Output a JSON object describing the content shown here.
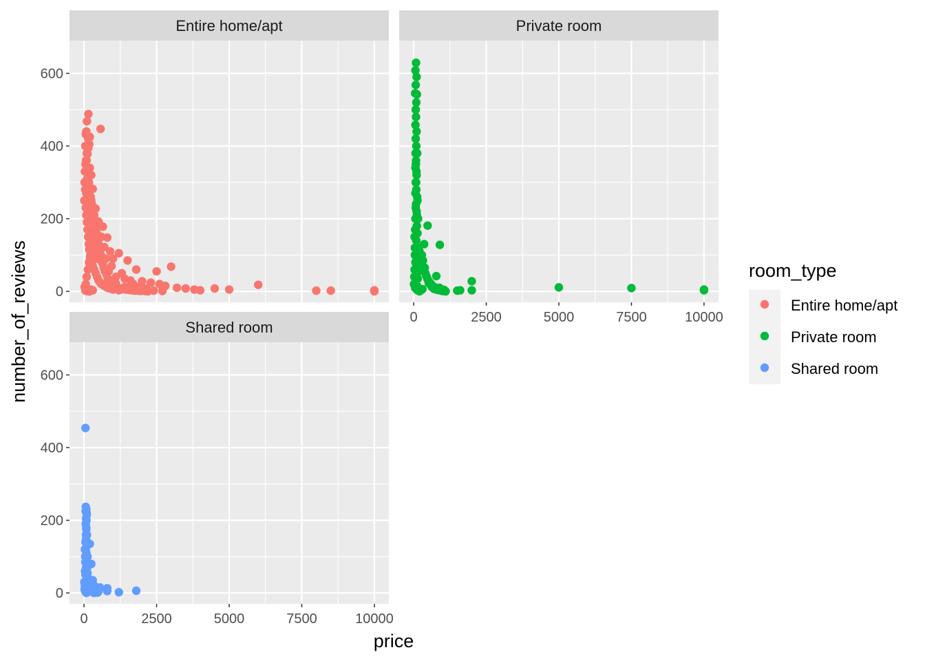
{
  "chart_data": {
    "type": "scatter",
    "xlabel": "price",
    "ylabel": "number_of_reviews",
    "xlim": [
      -500,
      10500
    ],
    "ylim": [
      -30,
      690
    ],
    "x_ticks": [
      0,
      2500,
      5000,
      7500,
      10000
    ],
    "x_tick_labels": [
      "0",
      "2500",
      "5000",
      "7500",
      "10000"
    ],
    "y_ticks": [
      0,
      200,
      400,
      600
    ],
    "y_tick_labels": [
      "0",
      "200",
      "400",
      "600"
    ],
    "grid": true,
    "legend": {
      "title": "room_type",
      "position": "right",
      "entries": [
        "Entire home/apt",
        "Private room",
        "Shared room"
      ]
    },
    "facets": [
      "Entire home/apt",
      "Private room",
      "Shared room"
    ],
    "colors": {
      "Entire home/apt": "#F8766D",
      "Private room": "#00BA38",
      "Shared room": "#619CFF",
      "panel_bg": "#EBEBEB",
      "strip_bg": "#D9D9D9",
      "grid": "#FFFFFF"
    },
    "series": [
      {
        "name": "Entire home/apt",
        "points": [
          [
            150,
            488
          ],
          [
            100,
            468
          ],
          [
            80,
            440
          ],
          [
            60,
            432
          ],
          [
            570,
            447
          ],
          [
            200,
            425
          ],
          [
            180,
            405
          ],
          [
            150,
            395
          ],
          [
            120,
            378
          ],
          [
            90,
            360
          ],
          [
            200,
            340
          ],
          [
            250,
            320
          ],
          [
            100,
            300
          ],
          [
            300,
            282
          ],
          [
            150,
            265
          ],
          [
            250,
            250
          ],
          [
            180,
            230
          ],
          [
            400,
            228
          ],
          [
            350,
            210
          ],
          [
            500,
            192
          ],
          [
            650,
            178
          ],
          [
            300,
            172
          ],
          [
            200,
            160
          ],
          [
            450,
            158
          ],
          [
            600,
            150
          ],
          [
            800,
            148
          ],
          [
            500,
            130
          ],
          [
            700,
            122
          ],
          [
            900,
            110
          ],
          [
            1200,
            105
          ],
          [
            400,
            100
          ],
          [
            1000,
            90
          ],
          [
            1500,
            85
          ],
          [
            1800,
            60
          ],
          [
            2500,
            55
          ],
          [
            1100,
            40
          ],
          [
            1400,
            35
          ],
          [
            1600,
            30
          ],
          [
            2000,
            28
          ],
          [
            2300,
            24
          ],
          [
            2600,
            20
          ],
          [
            2800,
            15
          ],
          [
            3000,
            68
          ],
          [
            1700,
            20
          ],
          [
            3200,
            10
          ],
          [
            3500,
            8
          ],
          [
            3800,
            5
          ],
          [
            4500,
            8
          ],
          [
            5000,
            5
          ],
          [
            6000,
            18
          ],
          [
            8000,
            2
          ],
          [
            8500,
            2
          ],
          [
            10000,
            3
          ],
          [
            10000,
            0
          ],
          [
            4000,
            3
          ],
          [
            2400,
            2
          ],
          [
            1300,
            50
          ],
          [
            950,
            70
          ],
          [
            750,
            90
          ],
          [
            550,
            110
          ],
          [
            50,
            350
          ],
          [
            30,
            330
          ],
          [
            20,
            300
          ],
          [
            40,
            280
          ],
          [
            10,
            250
          ],
          [
            60,
            230
          ],
          [
            80,
            210
          ],
          [
            100,
            190
          ],
          [
            120,
            170
          ],
          [
            140,
            150
          ],
          [
            160,
            130
          ],
          [
            180,
            115
          ],
          [
            220,
            100
          ],
          [
            260,
            85
          ],
          [
            300,
            70
          ],
          [
            350,
            60
          ],
          [
            400,
            50
          ],
          [
            450,
            40
          ],
          [
            500,
            30
          ],
          [
            550,
            25
          ],
          [
            600,
            20
          ],
          [
            700,
            15
          ],
          [
            800,
            10
          ],
          [
            900,
            8
          ],
          [
            1000,
            5
          ],
          [
            1200,
            3
          ],
          [
            50,
            2
          ],
          [
            100,
            1
          ],
          [
            150,
            0
          ],
          [
            200,
            0
          ],
          [
            250,
            5
          ],
          [
            300,
            3
          ],
          [
            20,
            12
          ],
          [
            60,
            20
          ],
          [
            90,
            40
          ],
          [
            130,
            60
          ],
          [
            170,
            80
          ],
          [
            210,
            95
          ],
          [
            240,
            120
          ],
          [
            280,
            140
          ],
          [
            320,
            160
          ],
          [
            360,
            180
          ],
          [
            80,
            270
          ],
          [
            110,
            310
          ],
          [
            130,
            330
          ],
          [
            70,
            360
          ],
          [
            45,
            400
          ],
          [
            140,
            420
          ],
          [
            95,
            380
          ],
          [
            170,
            300
          ],
          [
            190,
            280
          ],
          [
            230,
            260
          ],
          [
            270,
            240
          ],
          [
            330,
            200
          ],
          [
            380,
            185
          ],
          [
            420,
            170
          ],
          [
            480,
            140
          ],
          [
            530,
            120
          ],
          [
            580,
            100
          ],
          [
            620,
            80
          ],
          [
            680,
            65
          ],
          [
            720,
            55
          ],
          [
            780,
            45
          ],
          [
            820,
            35
          ],
          [
            870,
            30
          ],
          [
            920,
            25
          ],
          [
            980,
            20
          ],
          [
            1050,
            15
          ],
          [
            1150,
            10
          ],
          [
            1250,
            8
          ],
          [
            1350,
            6
          ],
          [
            1450,
            5
          ],
          [
            1550,
            4
          ],
          [
            1650,
            3
          ],
          [
            1750,
            2
          ],
          [
            1850,
            2
          ],
          [
            1950,
            1
          ],
          [
            2100,
            1
          ],
          [
            2200,
            0
          ],
          [
            2700,
            1
          ],
          [
            1900,
            12
          ],
          [
            2150,
            8
          ],
          [
            1600,
            15
          ],
          [
            1400,
            12
          ],
          [
            1100,
            22
          ],
          [
            850,
            55
          ],
          [
            650,
            75
          ],
          [
            450,
            90
          ],
          [
            350,
            120
          ],
          [
            210,
            210
          ]
        ]
      },
      {
        "name": "Private room",
        "points": [
          [
            80,
            629
          ],
          [
            60,
            608
          ],
          [
            100,
            590
          ],
          [
            70,
            568
          ],
          [
            50,
            545
          ],
          [
            110,
            542
          ],
          [
            90,
            520
          ],
          [
            70,
            500
          ],
          [
            80,
            480
          ],
          [
            60,
            458
          ],
          [
            100,
            440
          ],
          [
            70,
            420
          ],
          [
            90,
            400
          ],
          [
            120,
            380
          ],
          [
            80,
            360
          ],
          [
            60,
            340
          ],
          [
            100,
            320
          ],
          [
            70,
            300
          ],
          [
            90,
            280
          ],
          [
            120,
            260
          ],
          [
            80,
            240
          ],
          [
            100,
            220
          ],
          [
            150,
            200
          ],
          [
            110,
            180
          ],
          [
            130,
            160
          ],
          [
            90,
            140
          ],
          [
            160,
            120
          ],
          [
            200,
            110
          ],
          [
            180,
            95
          ],
          [
            250,
            80
          ],
          [
            300,
            70
          ],
          [
            350,
            60
          ],
          [
            400,
            50
          ],
          [
            450,
            40
          ],
          [
            500,
            30
          ],
          [
            550,
            25
          ],
          [
            600,
            20
          ],
          [
            650,
            15
          ],
          [
            700,
            12
          ],
          [
            750,
            10
          ],
          [
            800,
            8
          ],
          [
            850,
            5
          ],
          [
            900,
            3
          ],
          [
            950,
            2
          ],
          [
            1000,
            1
          ],
          [
            1100,
            0
          ],
          [
            480,
            181
          ],
          [
            900,
            128
          ],
          [
            360,
            130
          ],
          [
            780,
            42
          ],
          [
            1500,
            2
          ],
          [
            1600,
            3
          ],
          [
            2000,
            28
          ],
          [
            2000,
            3
          ],
          [
            5000,
            11
          ],
          [
            7500,
            9
          ],
          [
            10000,
            5
          ],
          [
            10000,
            3
          ],
          [
            40,
            100
          ],
          [
            60,
            80
          ],
          [
            30,
            60
          ],
          [
            20,
            40
          ],
          [
            10,
            20
          ],
          [
            50,
            10
          ],
          [
            100,
            5
          ],
          [
            150,
            2
          ],
          [
            200,
            0
          ],
          [
            250,
            3
          ],
          [
            300,
            6
          ],
          [
            120,
            15
          ],
          [
            140,
            35
          ],
          [
            170,
            55
          ],
          [
            210,
            75
          ],
          [
            240,
            90
          ],
          [
            280,
            100
          ],
          [
            320,
            85
          ],
          [
            380,
            65
          ],
          [
            420,
            45
          ],
          [
            470,
            35
          ],
          [
            520,
            22
          ],
          [
            580,
            18
          ],
          [
            630,
            12
          ],
          [
            680,
            8
          ],
          [
            730,
            6
          ],
          [
            820,
            4
          ],
          [
            880,
            10
          ],
          [
            960,
            6
          ],
          [
            1050,
            4
          ],
          [
            60,
            200
          ],
          [
            50,
            170
          ],
          [
            30,
            150
          ],
          [
            40,
            120
          ],
          [
            70,
            230
          ],
          [
            110,
            210
          ],
          [
            130,
            250
          ],
          [
            60,
            270
          ],
          [
            85,
            300
          ],
          [
            95,
            330
          ],
          [
            75,
            350
          ],
          [
            65,
            380
          ]
        ]
      },
      {
        "name": "Shared room",
        "points": [
          [
            50,
            454
          ],
          [
            60,
            237
          ],
          [
            80,
            230
          ],
          [
            90,
            220
          ],
          [
            70,
            205
          ],
          [
            60,
            190
          ],
          [
            80,
            175
          ],
          [
            100,
            160
          ],
          [
            70,
            148
          ],
          [
            90,
            135
          ],
          [
            200,
            135
          ],
          [
            150,
            135
          ],
          [
            60,
            120
          ],
          [
            80,
            110
          ],
          [
            120,
            100
          ],
          [
            90,
            90
          ],
          [
            100,
            80
          ],
          [
            150,
            75
          ],
          [
            80,
            65
          ],
          [
            120,
            55
          ],
          [
            250,
            80
          ],
          [
            100,
            45
          ],
          [
            150,
            40
          ],
          [
            200,
            35
          ],
          [
            250,
            30
          ],
          [
            300,
            35
          ],
          [
            350,
            20
          ],
          [
            400,
            15
          ],
          [
            450,
            10
          ],
          [
            500,
            5
          ],
          [
            550,
            15
          ],
          [
            800,
            13
          ],
          [
            800,
            5
          ],
          [
            1200,
            2
          ],
          [
            1800,
            6
          ],
          [
            30,
            20
          ],
          [
            20,
            10
          ],
          [
            40,
            5
          ],
          [
            60,
            2
          ],
          [
            80,
            0
          ],
          [
            100,
            3
          ],
          [
            150,
            8
          ],
          [
            200,
            12
          ],
          [
            250,
            4
          ],
          [
            300,
            2
          ],
          [
            350,
            0
          ],
          [
            400,
            3
          ],
          [
            10,
            30
          ],
          [
            50,
            50
          ],
          [
            70,
            70
          ],
          [
            110,
            25
          ],
          [
            130,
            18
          ],
          [
            170,
            22
          ],
          [
            190,
            28
          ],
          [
            230,
            14
          ],
          [
            270,
            9
          ],
          [
            320,
            6
          ],
          [
            370,
            4
          ],
          [
            420,
            2
          ],
          [
            470,
            1
          ],
          [
            40,
            100
          ],
          [
            30,
            120
          ],
          [
            50,
            140
          ],
          [
            65,
            160
          ],
          [
            75,
            180
          ],
          [
            85,
            200
          ],
          [
            95,
            215
          ],
          [
            55,
            225
          ],
          [
            45,
            85
          ],
          [
            35,
            60
          ]
        ]
      }
    ]
  }
}
